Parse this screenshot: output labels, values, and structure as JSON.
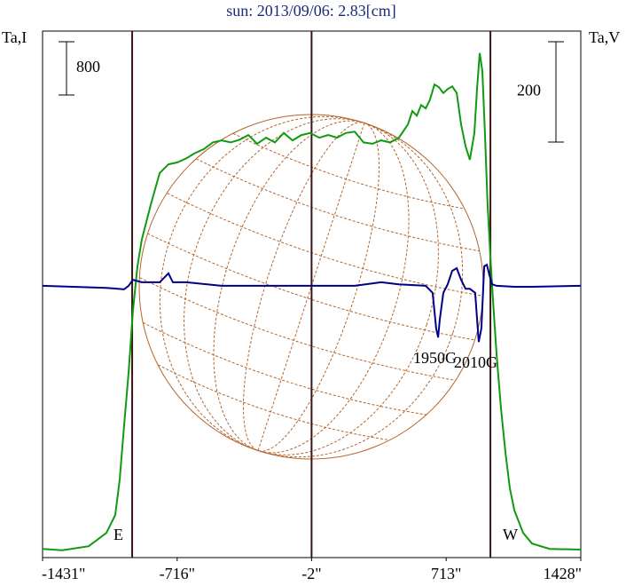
{
  "chart_data": {
    "type": "line",
    "title": "sun: 2013/09/06: 2.83[cm]",
    "ylabel": "Ta,I",
    "y2label": "Ta,V",
    "xlim": [
      -1431,
      1428
    ],
    "xticks": [
      {
        "value": -1431,
        "label": "-1431\""
      },
      {
        "value": -716,
        "label": "-716\""
      },
      {
        "value": -2,
        "label": "-2\""
      },
      {
        "value": 713,
        "label": "713\""
      },
      {
        "value": 1428,
        "label": "1428\""
      }
    ],
    "ylim": [
      0,
      7900
    ],
    "y2lim": [
      -540,
      510
    ],
    "i_scale": 800,
    "v_scale": 200,
    "vlines": [
      -955,
      -2,
      948
    ],
    "annotations": [
      "E",
      "W",
      "1950G",
      "2010G"
    ],
    "series": [
      {
        "color": "#109a10",
        "axis": "y",
        "x": [
          -1431,
          -1327,
          -1186,
          -1092,
          -1045,
          -1021,
          -998,
          -974,
          -951,
          -927,
          -904,
          -856,
          -809,
          -762,
          -715,
          -668,
          -621,
          -574,
          -527,
          -480,
          -432,
          -385,
          -338,
          -291,
          -244,
          -197,
          -150,
          -103,
          -56,
          -9,
          39,
          86,
          133,
          180,
          227,
          274,
          321,
          368,
          415,
          462,
          510,
          533,
          557,
          580,
          604,
          627,
          651,
          674,
          698,
          721,
          745,
          769,
          792,
          816,
          839,
          863,
          877,
          891,
          905,
          919,
          933,
          948,
          962,
          981,
          1004,
          1028,
          1051,
          1075,
          1122,
          1169,
          1263,
          1428
        ],
        "values": [
          130,
          110,
          170,
          370,
          640,
          1170,
          1970,
          2770,
          3700,
          4370,
          4770,
          5300,
          5770,
          5900,
          5930,
          5990,
          6070,
          6130,
          6230,
          6260,
          6230,
          6270,
          6340,
          6210,
          6300,
          6230,
          6370,
          6260,
          6340,
          6370,
          6300,
          6340,
          6300,
          6370,
          6390,
          6230,
          6210,
          6260,
          6230,
          6300,
          6500,
          6700,
          6630,
          6790,
          6740,
          6870,
          7100,
          7060,
          6970,
          7030,
          7070,
          6970,
          6500,
          6170,
          5970,
          6370,
          7030,
          7570,
          7300,
          6370,
          5300,
          4500,
          3840,
          3040,
          2240,
          1570,
          1040,
          710,
          370,
          210,
          130,
          120
        ]
      },
      {
        "color": "#00008b",
        "axis": "y2",
        "x": [
          -1431,
          -1092,
          -998,
          -974,
          -951,
          -904,
          -809,
          -762,
          -739,
          -668,
          -480,
          -244,
          -9,
          227,
          368,
          462,
          604,
          641,
          660,
          670,
          679,
          698,
          721,
          745,
          769,
          792,
          816,
          839,
          867,
          886,
          900,
          915,
          929,
          943,
          957,
          981,
          1075,
          1169,
          1428
        ],
        "values": [
          2,
          -2,
          -5,
          2,
          14,
          9,
          9,
          27,
          9,
          9,
          2,
          2,
          2,
          2,
          9,
          5,
          2,
          -12,
          -83,
          -101,
          -65,
          -12,
          5,
          32,
          37,
          14,
          -4,
          -4,
          -12,
          -110,
          -83,
          41,
          44,
          23,
          5,
          2,
          0,
          0,
          2
        ]
      }
    ]
  }
}
